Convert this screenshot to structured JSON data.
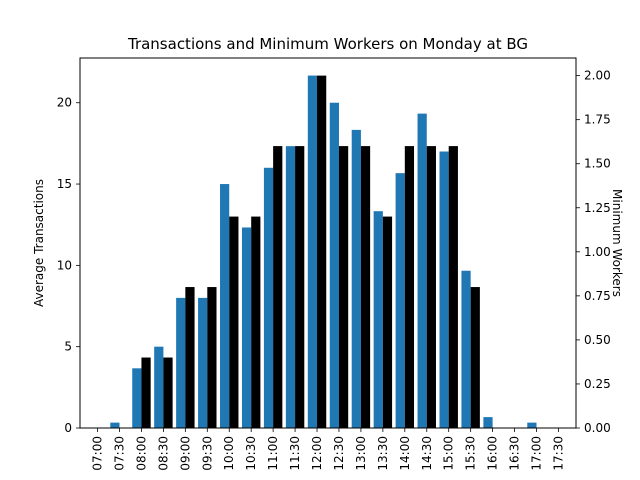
{
  "chart_data": {
    "type": "bar",
    "title": "Transactions and Minimum Workers on Monday at BG",
    "xlabel": "",
    "ylabel": "Average Transactions",
    "y2label": "Minimum Workers",
    "categories": [
      "07:00",
      "07:30",
      "08:00",
      "08:30",
      "09:00",
      "09:30",
      "10:00",
      "10:30",
      "11:00",
      "11:30",
      "12:00",
      "12:30",
      "13:00",
      "13:30",
      "14:00",
      "14:30",
      "15:00",
      "15:30",
      "16:00",
      "16:30",
      "17:00",
      "17:30"
    ],
    "ylim": [
      0,
      22.75
    ],
    "y2lim": [
      0,
      2.1
    ],
    "yticks": [
      "0",
      "5",
      "10",
      "15",
      "20"
    ],
    "y2ticks": [
      "0.00",
      "0.25",
      "0.50",
      "0.75",
      "1.00",
      "1.25",
      "1.50",
      "1.75",
      "2.00"
    ],
    "grid": false,
    "series": [
      {
        "axis": "left",
        "color": "#1f77b4",
        "values": [
          0,
          0.33,
          3.67,
          5.0,
          8.0,
          8.0,
          15.0,
          12.33,
          16.0,
          17.33,
          21.67,
          20.0,
          18.33,
          13.33,
          15.67,
          19.33,
          17.0,
          9.67,
          0.67,
          0,
          0.33,
          0
        ]
      },
      {
        "axis": "right",
        "color": "#000000",
        "values": [
          0,
          0,
          0.4,
          0.4,
          0.8,
          0.8,
          1.2,
          1.2,
          1.6,
          1.6,
          2.0,
          1.6,
          1.6,
          1.2,
          1.6,
          1.6,
          1.6,
          0.8,
          0,
          0,
          0,
          0
        ]
      }
    ]
  }
}
